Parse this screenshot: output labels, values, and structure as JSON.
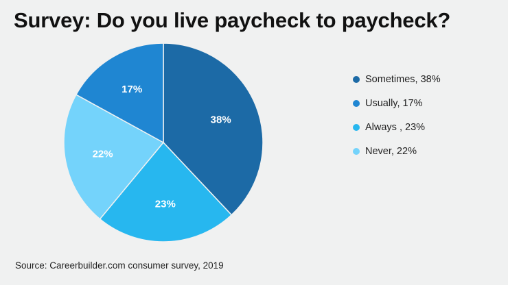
{
  "title": "Survey: Do you live paycheck to paycheck?",
  "source": "Source: Careerbuilder.com consumer survey, 2019",
  "chart_data": {
    "type": "pie",
    "title": "Survey: Do you live paycheck to paycheck?",
    "slices": [
      {
        "name": "Sometimes",
        "value": 38,
        "label": "38%",
        "legend": "Sometimes, 38%",
        "color": "#1c6aa6"
      },
      {
        "name": "Always",
        "value": 23,
        "label": "23%",
        "legend": "Always , 23%",
        "color": "#27b7ef"
      },
      {
        "name": "Never",
        "value": 22,
        "label": "22%",
        "legend": "Never, 22%",
        "color": "#74d3fb"
      },
      {
        "name": "Usually",
        "value": 17,
        "label": "17%",
        "legend": "Usually, 17%",
        "color": "#1f86d2"
      }
    ],
    "legend_order": [
      "Sometimes",
      "Usually",
      "Always",
      "Never"
    ],
    "legend_position": "right",
    "start_angle_deg": 0,
    "direction": "clockwise"
  }
}
